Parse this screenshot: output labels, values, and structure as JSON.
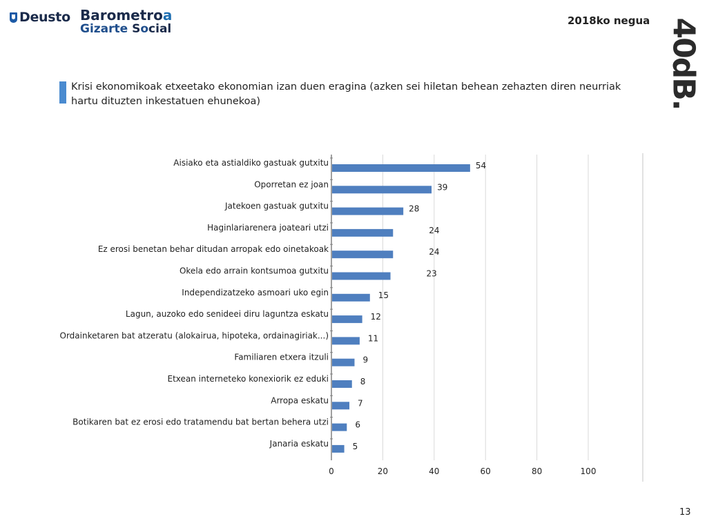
{
  "header": {
    "deusto_logo": "Deusto",
    "barometro_part1": "Barometro",
    "barometro_accent": "a",
    "gizarte": "Gizarte",
    "social_pre": "S",
    "social_o": "o",
    "social_post": "cial",
    "period": "2018ko negua",
    "brand": "40dB."
  },
  "slide": {
    "title": "Krisi ekonomikoak etxeetako ekonomian izan duen eragina (azken sei hiletan behean zehazten diren neurriak hartu dituzten inkestatuen ehunekoa)",
    "page_number": "13"
  },
  "colors": {
    "bar": "#4f7fbf",
    "title_accent": "#4a8bd0",
    "brand_dark": "#1a2a4a",
    "brand_blue": "#1f4e8c"
  },
  "chart_data": {
    "type": "bar",
    "orientation": "horizontal",
    "categories": [
      "Aisiako eta astialdiko gastuak gutxitu",
      "Oporretan ez joan",
      "Jatekoen gastuak gutxitu",
      "Haginlariarenera joateari utzi",
      "Ez erosi benetan behar ditudan arropak edo oinetakoak",
      "Okela edo arrain kontsumoa gutxitu",
      "Independizatzeko asmoari uko egin",
      "Lagun, auzoko edo senideei diru laguntza eskatu",
      "Ordainketaren bat atzeratu (alokairua, hipoteka, ordainagiriak...)",
      "Familiaren etxera itzuli",
      "Etxean interneteko konexiorik ez eduki",
      "Arropa eskatu",
      "Botikaren bat ez erosi edo tratamendu bat bertan behera utzi",
      "Janaria eskatu"
    ],
    "values": [
      54,
      39,
      28,
      24,
      24,
      23,
      15,
      12,
      11,
      9,
      8,
      7,
      6,
      5
    ],
    "value_labels": [
      "54",
      "39",
      "28",
      "24",
      "24",
      "23",
      "15",
      "12",
      "11",
      "9",
      "8",
      "7",
      "6",
      "5"
    ],
    "xlim": [
      0,
      100
    ],
    "xticks": [
      0,
      20,
      40,
      60,
      80,
      100
    ],
    "xtick_labels": [
      "0",
      "20",
      "40",
      "60",
      "80",
      "100"
    ],
    "grid": "vertical",
    "legend": "none"
  }
}
